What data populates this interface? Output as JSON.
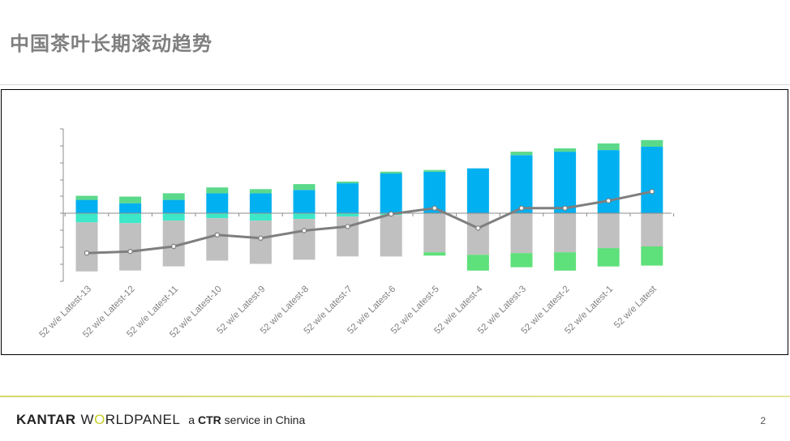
{
  "header": {
    "title": "中国茶叶长期滚动趋势"
  },
  "chart_data": {
    "type": "bar",
    "stacked": true,
    "title": "中国茶叶长期滚动趋势",
    "categories": [
      "52 w/e Latest-13",
      "52 w/e Latest-12",
      "52 w/e Latest-11",
      "52 w/e Latest-10",
      "52 w/e Latest-9",
      "52 w/e Latest-8",
      "52 w/e Latest-7",
      "52 w/e Latest-6",
      "52 w/e Latest-5",
      "52 w/e Latest-4",
      "52 w/e Latest-3",
      "52 w/e Latest-2",
      "52 w/e Latest-1",
      "52 w/e Latest"
    ],
    "ylim": [
      -4.2,
      5.0
    ],
    "series": [
      {
        "name": "blue (positive)",
        "color": "#00b0f0",
        "values": [
          0.8,
          0.6,
          0.8,
          1.2,
          1.2,
          1.4,
          1.8,
          2.4,
          2.5,
          2.7,
          3.5,
          3.7,
          3.8,
          4.0
        ]
      },
      {
        "name": "green (positive)",
        "color": "#5bd98a",
        "values": [
          0.25,
          0.4,
          0.4,
          0.35,
          0.25,
          0.35,
          0.1,
          0.1,
          0.1,
          0.0,
          0.2,
          0.2,
          0.4,
          0.4
        ]
      },
      {
        "name": "teal (negative)",
        "color": "#3de8c8",
        "values": [
          -0.55,
          -0.6,
          -0.45,
          -0.3,
          -0.45,
          -0.35,
          -0.2,
          -0.1,
          0.0,
          0.0,
          0.0,
          0.0,
          0.0,
          0.0
        ]
      },
      {
        "name": "grey (negative)",
        "color": "#c0c0c0",
        "values": [
          -2.95,
          -2.85,
          -2.75,
          -2.55,
          -2.6,
          -2.45,
          -2.4,
          -2.5,
          -2.35,
          -2.5,
          -2.4,
          -2.35,
          -2.1,
          -2.0
        ]
      },
      {
        "name": "light green (negative)",
        "color": "#5ee07a",
        "values": [
          0.0,
          0.0,
          0.0,
          0.0,
          0.0,
          0.0,
          0.0,
          0.0,
          -0.2,
          -0.95,
          -0.85,
          -1.1,
          -1.1,
          -1.15
        ]
      }
    ],
    "line": {
      "name": "net",
      "color": "#7f7f7f",
      "values": [
        -2.4,
        -2.3,
        -2.0,
        -1.3,
        -1.5,
        -1.05,
        -0.8,
        -0.05,
        0.3,
        -0.9,
        0.3,
        0.3,
        0.75,
        1.3
      ]
    }
  },
  "footer": {
    "brand_1": "KANTAR",
    "brand_2a": "W",
    "brand_2b": "O",
    "brand_2c": "RLDPANEL",
    "tagline_a": "a",
    "tagline_b": "CTR",
    "tagline_c": "service in China",
    "page_number": "2"
  }
}
